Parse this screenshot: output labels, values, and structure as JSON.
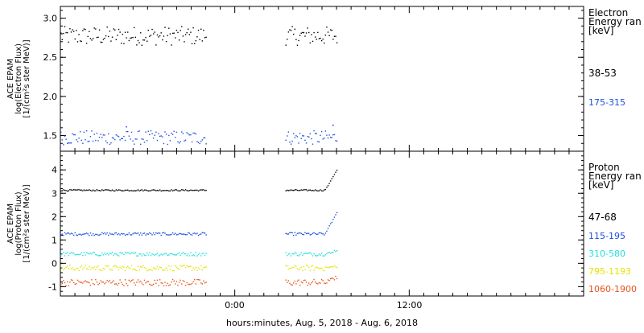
{
  "chart_data": [
    {
      "type": "scatter",
      "panel": "electron",
      "ylabel": [
        "ACE EPAM",
        "log(Electron Flux)",
        "[1/(cm²s ster MeV)]"
      ],
      "ylim": [
        1.3,
        3.15
      ],
      "yticks": [
        "3.0",
        "2.5",
        "2.0",
        "1.5"
      ],
      "ytick_values": [
        3.0,
        2.5,
        2.0,
        1.5
      ],
      "legend": {
        "title": [
          "Electron",
          "Energy ran",
          "[keV]"
        ],
        "entries": [
          "38-53",
          "175-315"
        ]
      },
      "series": [
        {
          "name": "38-53",
          "color": "#000000",
          "mean": 2.78,
          "jitter": 0.12,
          "segments": [
            [
              0.0,
              0.28
            ],
            [
              0.43,
              0.53
            ]
          ],
          "extras": []
        },
        {
          "name": "175-315",
          "color": "#1f4fe0",
          "mean": 1.48,
          "jitter": 0.09,
          "segments": [
            [
              0.0,
              0.28
            ],
            [
              0.43,
              0.53
            ]
          ],
          "extras": [
            [
              0.52,
              1.64
            ],
            [
              0.125,
              1.62
            ]
          ]
        }
      ]
    },
    {
      "type": "scatter",
      "panel": "proton",
      "ylabel": [
        "ACE EPAM",
        "log(Proton Flux)",
        "[1/(cm²s ster MeV)]"
      ],
      "ylim": [
        -1.4,
        4.8
      ],
      "yticks": [
        "4",
        "3",
        "2",
        "1",
        "0",
        "-1"
      ],
      "ytick_values": [
        4,
        3,
        2,
        1,
        0,
        -1
      ],
      "legend": {
        "title": [
          "Proton",
          "Energy ran",
          "[keV]"
        ],
        "entries": [
          "47-68",
          "115-195",
          "310-580",
          "795-1193",
          "1060-1900"
        ]
      },
      "series": [
        {
          "name": "47-68",
          "color": "#000000",
          "mean": 3.15,
          "jitter": 0.03,
          "segments": [
            [
              0.0,
              0.28
            ],
            [
              0.43,
              0.53
            ]
          ],
          "rise": [
            3.15,
            4.1
          ]
        },
        {
          "name": "115-195",
          "color": "#1f4fe0",
          "mean": 1.28,
          "jitter": 0.06,
          "segments": [
            [
              0.0,
              0.28
            ],
            [
              0.43,
              0.53
            ]
          ],
          "rise": [
            1.28,
            2.3
          ]
        },
        {
          "name": "310-580",
          "color": "#22dede",
          "mean": 0.42,
          "jitter": 0.08,
          "segments": [
            [
              0.0,
              0.28
            ],
            [
              0.43,
              0.53
            ]
          ],
          "rise": [
            0.42,
            0.6
          ]
        },
        {
          "name": "795-1193",
          "color": "#e4e400",
          "mean": -0.18,
          "jitter": 0.12,
          "segments": [
            [
              0.0,
              0.28
            ],
            [
              0.43,
              0.53
            ]
          ],
          "rise": [
            -0.18,
            -0.1
          ]
        },
        {
          "name": "1060-1900",
          "color": "#e8521a",
          "mean": -0.8,
          "jitter": 0.14,
          "segments": [
            [
              0.0,
              0.28
            ],
            [
              0.43,
              0.53
            ]
          ],
          "rise": [
            -0.8,
            -0.55
          ]
        }
      ]
    }
  ],
  "xaxis": {
    "ticks": [
      {
        "label": "0:00",
        "frac": 0.333
      },
      {
        "label": "12:00",
        "frac": 0.667
      }
    ],
    "label": "hours:minutes, Aug.  5, 2018 - Aug.  6, 2018"
  }
}
